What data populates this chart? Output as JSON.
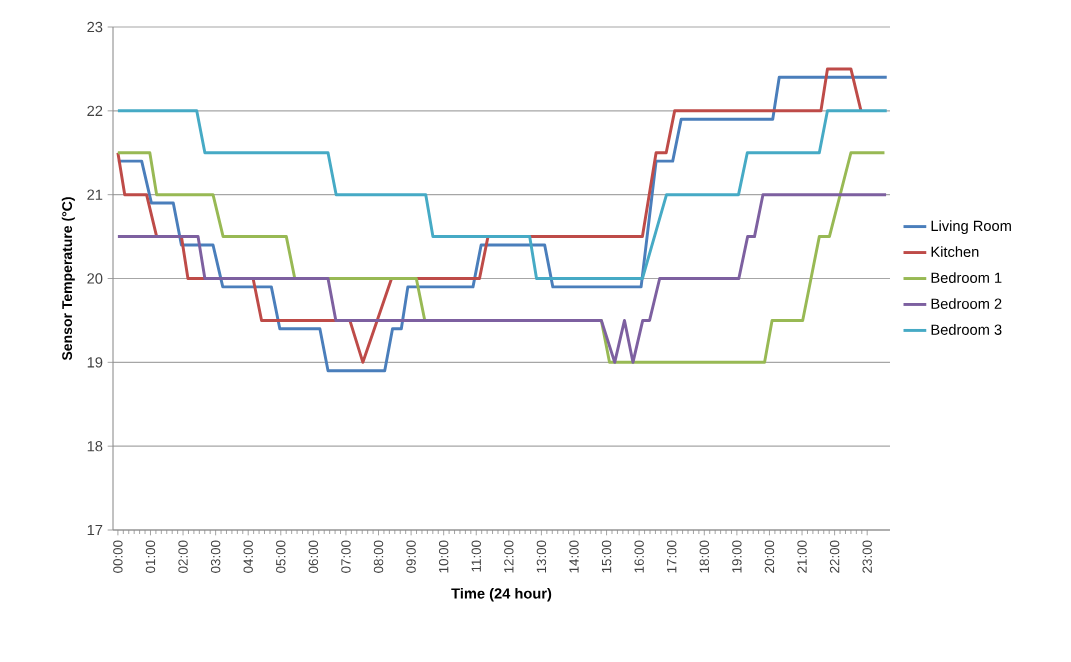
{
  "chart_data": {
    "type": "line",
    "xlabel": "Time (24 hour)",
    "ylabel": "Sensor Temperature (°C)",
    "xlim": [
      -0.15,
      23.7
    ],
    "ylim": [
      17,
      23
    ],
    "xticks": [
      {
        "value": 0,
        "label": "00:00"
      },
      {
        "value": 1,
        "label": "01:00"
      },
      {
        "value": 2,
        "label": "02:00"
      },
      {
        "value": 3,
        "label": "03:00"
      },
      {
        "value": 4,
        "label": "04:00"
      },
      {
        "value": 5,
        "label": "05:00"
      },
      {
        "value": 6,
        "label": "06:00"
      },
      {
        "value": 7,
        "label": "07:00"
      },
      {
        "value": 8,
        "label": "08:00"
      },
      {
        "value": 9,
        "label": "09:00"
      },
      {
        "value": 10,
        "label": "10:00"
      },
      {
        "value": 11,
        "label": "11:00"
      },
      {
        "value": 12,
        "label": "12:00"
      },
      {
        "value": 13,
        "label": "13:00"
      },
      {
        "value": 14,
        "label": "14:00"
      },
      {
        "value": 15,
        "label": "15:00"
      },
      {
        "value": 16,
        "label": "16:00"
      },
      {
        "value": 17,
        "label": "17:00"
      },
      {
        "value": 18,
        "label": "18:00"
      },
      {
        "value": 19,
        "label": "19:00"
      },
      {
        "value": 20,
        "label": "20:00"
      },
      {
        "value": 21,
        "label": "21:00"
      },
      {
        "value": 22,
        "label": "22:00"
      },
      {
        "value": 23,
        "label": "23:00"
      }
    ],
    "yticks": [
      17,
      18,
      19,
      20,
      21,
      22,
      23
    ],
    "grid": "y",
    "legend": "right",
    "marker": "none",
    "line_style": "solid",
    "series": [
      {
        "name": "Living Room",
        "color": "#4a7ebb",
        "x": [
          0,
          0.73,
          1.03,
          1.7,
          1.95,
          2.92,
          3.22,
          4.71,
          4.97,
          6.2,
          6.45,
          8.19,
          8.43,
          8.7,
          8.9,
          10.9,
          11.15,
          13.1,
          13.35,
          16.06,
          16.52,
          17.03,
          17.29,
          20.1,
          20.3,
          23.6
        ],
        "values": [
          21.4,
          21.4,
          20.9,
          20.9,
          20.4,
          20.4,
          19.9,
          19.9,
          19.4,
          19.4,
          18.9,
          18.9,
          19.4,
          19.4,
          19.9,
          19.9,
          20.4,
          20.4,
          19.9,
          19.9,
          21.4,
          21.4,
          21.9,
          21.9,
          22.4,
          22.4
        ]
      },
      {
        "name": "Kitchen",
        "color": "#be4b48",
        "x": [
          0,
          0.21,
          0.88,
          1.19,
          1.95,
          2.15,
          4.15,
          4.41,
          7.12,
          7.52,
          8.4,
          11.1,
          11.36,
          16.1,
          16.52,
          16.83,
          17.09,
          21.58,
          21.78,
          22.5,
          22.81
        ],
        "values": [
          21.5,
          21.0,
          21.0,
          20.5,
          20.5,
          20.0,
          20.0,
          19.5,
          19.5,
          19.0,
          20.0,
          20.0,
          20.5,
          20.5,
          21.5,
          21.5,
          22.0,
          22.0,
          22.5,
          22.5,
          22.0
        ]
      },
      {
        "name": "Bedroom 1",
        "color": "#98b954",
        "x": [
          0,
          0.98,
          1.19,
          2.92,
          3.23,
          5.17,
          5.43,
          9.16,
          9.42,
          14.84,
          15.09,
          19.85,
          20.08,
          21.02,
          21.53,
          21.84,
          22.5,
          23.53
        ],
        "values": [
          21.5,
          21.5,
          21.0,
          21.0,
          20.5,
          20.5,
          20.0,
          20.0,
          19.5,
          19.5,
          19.0,
          19.0,
          19.5,
          19.5,
          20.5,
          20.5,
          21.5,
          21.5
        ]
      },
      {
        "name": "Bedroom 2",
        "color": "#7d60a0",
        "x": [
          0,
          2.46,
          2.67,
          6.45,
          6.69,
          14.84,
          15.25,
          15.55,
          15.81,
          16.11,
          16.32,
          16.63,
          19.06,
          19.33,
          19.54,
          19.8,
          23.58
        ],
        "values": [
          20.5,
          20.5,
          20.0,
          20.0,
          19.5,
          19.5,
          19.0,
          19.5,
          19.0,
          19.5,
          19.5,
          20.0,
          20.0,
          20.5,
          20.5,
          21.0,
          21.0
        ]
      },
      {
        "name": "Bedroom 3",
        "color": "#46aac5",
        "x": [
          0,
          2.42,
          2.67,
          6.45,
          6.7,
          9.45,
          9.67,
          12.64,
          12.85,
          16.1,
          16.84,
          19.05,
          19.32,
          21.53,
          21.78,
          23.6
        ],
        "values": [
          22.0,
          22.0,
          21.5,
          21.5,
          21.0,
          21.0,
          20.5,
          20.5,
          20.0,
          20.0,
          21.0,
          21.0,
          21.5,
          21.5,
          22.0,
          22.0
        ]
      }
    ]
  }
}
